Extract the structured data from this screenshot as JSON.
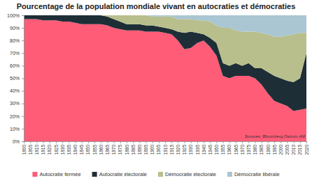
{
  "chart_data": {
    "type": "area",
    "stacked": true,
    "title": "Pourcentage de la population mondiale vivant en autocraties et démocraties",
    "annotations": [
      "Sources: Bloomberg,Ostrum AM"
    ],
    "x": [
      1800,
      1805,
      1810,
      1815,
      1820,
      1825,
      1830,
      1835,
      1840,
      1845,
      1850,
      1855,
      1860,
      1865,
      1870,
      1875,
      1880,
      1885,
      1890,
      1895,
      1900,
      1905,
      1910,
      1915,
      1920,
      1925,
      1930,
      1935,
      1940,
      1945,
      1950,
      1955,
      1960,
      1965,
      1970,
      1975,
      1980,
      1985,
      1990,
      1995,
      2000,
      2005,
      2010,
      2015,
      2020
    ],
    "xlim": [
      1800,
      2020
    ],
    "xticks": [
      1800,
      1805,
      1810,
      1815,
      1820,
      1825,
      1830,
      1835,
      1840,
      1845,
      1850,
      1855,
      1860,
      1865,
      1870,
      1875,
      1880,
      1885,
      1890,
      1895,
      1900,
      1905,
      1910,
      1915,
      1920,
      1925,
      1930,
      1935,
      1940,
      1945,
      1950,
      1955,
      1960,
      1965,
      1970,
      1975,
      1980,
      1985,
      1990,
      1995,
      2000,
      2005,
      2010,
      2015,
      2020
    ],
    "ylim": [
      0,
      100
    ],
    "yticks": [
      {
        "value": 0,
        "label": "0%"
      },
      {
        "value": 10,
        "label": "10%"
      },
      {
        "value": 20,
        "label": "20%"
      },
      {
        "value": 30,
        "label": "30%"
      },
      {
        "value": 40,
        "label": "40%"
      },
      {
        "value": 50,
        "label": "50%"
      },
      {
        "value": 60,
        "label": "60%"
      },
      {
        "value": 70,
        "label": "70%"
      },
      {
        "value": 80,
        "label": "80%"
      },
      {
        "value": 90,
        "label": "90%"
      },
      {
        "value": 100,
        "label": "100%"
      }
    ],
    "grid": false,
    "legend": "bottom",
    "series": [
      {
        "name": "Autocratie fermée",
        "color": "#ff5c77",
        "values": [
          97,
          97,
          97,
          96,
          96,
          96,
          95,
          95,
          94,
          93,
          93,
          93,
          93,
          92,
          90,
          89,
          88,
          88,
          88,
          87,
          87,
          87,
          86,
          85,
          80,
          73,
          74,
          78,
          80,
          75,
          68,
          52,
          50,
          52,
          52,
          52,
          50,
          45,
          38,
          32,
          30,
          28,
          24,
          25,
          26
        ]
      },
      {
        "name": "Autocratie électorale",
        "color": "#1e2e36",
        "values": [
          3,
          3,
          3,
          4,
          4,
          4,
          5,
          5,
          6,
          7,
          7,
          7,
          7,
          7,
          7,
          6,
          5,
          5,
          5,
          5,
          5,
          4,
          4,
          4,
          7,
          13,
          13,
          8,
          5,
          7,
          10,
          10,
          10,
          10,
          8,
          10,
          8,
          13,
          17,
          20,
          20,
          20,
          23,
          25,
          44
        ]
      },
      {
        "name": "Démocratie électorale",
        "color": "#b8bf8c",
        "values": [
          0,
          0,
          0,
          0,
          0,
          0,
          0,
          0,
          0,
          0,
          0,
          0,
          0,
          1,
          3,
          5,
          7,
          7,
          7,
          8,
          7,
          8,
          9,
          10,
          10,
          11,
          10,
          10,
          11,
          13,
          14,
          28,
          30,
          26,
          27,
          25,
          29,
          28,
          30,
          31,
          33,
          36,
          38,
          36,
          16
        ]
      },
      {
        "name": "Démocratie libérale",
        "color": "#a9c6d2",
        "values": [
          0,
          0,
          0,
          0,
          0,
          0,
          0,
          0,
          0,
          0,
          0,
          0,
          0,
          0,
          0,
          0,
          0,
          0,
          0,
          0,
          1,
          1,
          1,
          1,
          3,
          3,
          3,
          4,
          4,
          5,
          8,
          10,
          10,
          12,
          13,
          13,
          13,
          14,
          15,
          17,
          17,
          16,
          15,
          14,
          14
        ]
      }
    ]
  }
}
